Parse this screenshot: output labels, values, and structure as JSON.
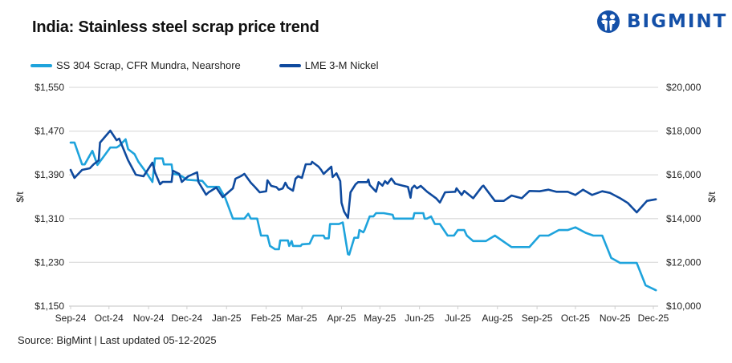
{
  "title": "India: Stainless steel scrap price trend",
  "logo_text": "BIGMINT",
  "source": "Source: BigMint | Last updated 05-12-2025",
  "colors": {
    "ss304": "#1ea3dc",
    "nickel": "#0f4a9e",
    "grid": "#dddddd",
    "logo": "#1450a8"
  },
  "chart_data": {
    "type": "line",
    "title": "India: Stainless steel scrap price trend",
    "grid": true,
    "legend_position": "top-left",
    "x_ticks": [
      "Sep-24",
      "Oct-24",
      "Nov-24",
      "Dec-24",
      "Jan-25",
      "Feb-25",
      "Mar-25",
      "Apr-25",
      "May-25",
      "Jun-25",
      "Jul-25",
      "Aug-25",
      "Sep-25",
      "Oct-25",
      "Nov-25",
      "Dec-25"
    ],
    "x_range": [
      "2024-09-01",
      "2025-12-01"
    ],
    "y_left": {
      "label": "$/t",
      "range": [
        1150,
        1550
      ],
      "ticks": [
        "$1,150",
        "$1,230",
        "$1,310",
        "$1,390",
        "$1,470",
        "$1,550"
      ]
    },
    "y_right": {
      "label": "$/t",
      "range": [
        10000,
        20000
      ],
      "ticks": [
        "$10,000",
        "$12,000",
        "$14,000",
        "$16,000",
        "$18,000",
        "$20,000"
      ]
    },
    "series": [
      {
        "name": "SS 304 Scrap, CFR Mundra, Nearshore",
        "axis": "left",
        "color": "#1ea3dc",
        "points": [
          [
            "2024-09-01",
            1449
          ],
          [
            "2024-09-04",
            1449
          ],
          [
            "2024-09-10",
            1409
          ],
          [
            "2024-09-12",
            1409
          ],
          [
            "2024-09-18",
            1434
          ],
          [
            "2024-09-22",
            1408
          ],
          [
            "2024-10-02",
            1440
          ],
          [
            "2024-10-07",
            1440
          ],
          [
            "2024-10-09",
            1443
          ],
          [
            "2024-10-14",
            1455
          ],
          [
            "2024-10-16",
            1437
          ],
          [
            "2024-10-21",
            1428
          ],
          [
            "2024-10-24",
            1414
          ],
          [
            "2024-10-30",
            1395
          ],
          [
            "2024-11-04",
            1377
          ],
          [
            "2024-11-06",
            1420
          ],
          [
            "2024-11-12",
            1420
          ],
          [
            "2024-11-13",
            1409
          ],
          [
            "2024-11-19",
            1409
          ],
          [
            "2024-11-20",
            1392
          ],
          [
            "2024-11-25",
            1390
          ],
          [
            "2024-11-28",
            1386
          ],
          [
            "2024-12-01",
            1381
          ],
          [
            "2024-12-13",
            1379
          ],
          [
            "2024-12-17",
            1368
          ],
          [
            "2024-12-26",
            1368
          ],
          [
            "2024-12-31",
            1348
          ],
          [
            "2025-01-06",
            1310
          ],
          [
            "2025-01-15",
            1310
          ],
          [
            "2025-01-18",
            1319
          ],
          [
            "2025-01-20",
            1310
          ],
          [
            "2025-01-25",
            1310
          ],
          [
            "2025-01-28",
            1279
          ],
          [
            "2025-02-02",
            1279
          ],
          [
            "2025-02-04",
            1260
          ],
          [
            "2025-02-08",
            1254
          ],
          [
            "2025-02-11",
            1254
          ],
          [
            "2025-02-12",
            1270
          ],
          [
            "2025-02-18",
            1270
          ],
          [
            "2025-02-19",
            1260
          ],
          [
            "2025-02-21",
            1269
          ],
          [
            "2025-02-22",
            1260
          ],
          [
            "2025-02-28",
            1260
          ],
          [
            "2025-03-01",
            1263
          ],
          [
            "2025-03-07",
            1264
          ],
          [
            "2025-03-10",
            1279
          ],
          [
            "2025-03-18",
            1279
          ],
          [
            "2025-03-19",
            1274
          ],
          [
            "2025-03-22",
            1274
          ],
          [
            "2025-03-23",
            1300
          ],
          [
            "2025-03-30",
            1300
          ],
          [
            "2025-04-02",
            1303
          ],
          [
            "2025-04-04",
            1274
          ],
          [
            "2025-04-06",
            1245
          ],
          [
            "2025-04-07",
            1244
          ],
          [
            "2025-04-11",
            1275
          ],
          [
            "2025-04-14",
            1275
          ],
          [
            "2025-04-15",
            1289
          ],
          [
            "2025-04-18",
            1285
          ],
          [
            "2025-04-19",
            1289
          ],
          [
            "2025-04-23",
            1314
          ],
          [
            "2025-04-26",
            1314
          ],
          [
            "2025-04-28",
            1320
          ],
          [
            "2025-05-04",
            1320
          ],
          [
            "2025-05-11",
            1317
          ],
          [
            "2025-05-12",
            1310
          ],
          [
            "2025-05-27",
            1310
          ],
          [
            "2025-05-28",
            1320
          ],
          [
            "2025-06-04",
            1320
          ],
          [
            "2025-06-05",
            1310
          ],
          [
            "2025-06-07",
            1310
          ],
          [
            "2025-06-10",
            1314
          ],
          [
            "2025-06-13",
            1300
          ],
          [
            "2025-06-17",
            1300
          ],
          [
            "2025-06-23",
            1279
          ],
          [
            "2025-06-28",
            1279
          ],
          [
            "2025-07-01",
            1289
          ],
          [
            "2025-07-06",
            1289
          ],
          [
            "2025-07-08",
            1279
          ],
          [
            "2025-07-13",
            1269
          ],
          [
            "2025-07-23",
            1269
          ],
          [
            "2025-07-30",
            1279
          ],
          [
            "2025-08-12",
            1258
          ],
          [
            "2025-08-26",
            1258
          ],
          [
            "2025-09-03",
            1279
          ],
          [
            "2025-09-10",
            1279
          ],
          [
            "2025-09-18",
            1289
          ],
          [
            "2025-09-25",
            1289
          ],
          [
            "2025-10-01",
            1294
          ],
          [
            "2025-10-09",
            1284
          ],
          [
            "2025-10-15",
            1279
          ],
          [
            "2025-10-22",
            1279
          ],
          [
            "2025-10-29",
            1238
          ],
          [
            "2025-11-05",
            1229
          ],
          [
            "2025-11-18",
            1229
          ],
          [
            "2025-11-25",
            1188
          ],
          [
            "2025-12-03",
            1179
          ]
        ]
      },
      {
        "name": "LME 3-M Nickel",
        "axis": "right",
        "color": "#0f4a9e",
        "points": [
          [
            "2024-09-01",
            16227
          ],
          [
            "2024-09-04",
            15861
          ],
          [
            "2024-09-10",
            16227
          ],
          [
            "2024-09-16",
            16300
          ],
          [
            "2024-09-19",
            16484
          ],
          [
            "2024-09-23",
            16667
          ],
          [
            "2024-09-24",
            17473
          ],
          [
            "2024-10-02",
            18022
          ],
          [
            "2024-10-07",
            17583
          ],
          [
            "2024-10-09",
            17656
          ],
          [
            "2024-10-16",
            16667
          ],
          [
            "2024-10-22",
            16007
          ],
          [
            "2024-10-28",
            15934
          ],
          [
            "2024-11-04",
            16557
          ],
          [
            "2024-11-06",
            16117
          ],
          [
            "2024-11-10",
            15568
          ],
          [
            "2024-11-12",
            15678
          ],
          [
            "2024-11-19",
            15678
          ],
          [
            "2024-11-20",
            16190
          ],
          [
            "2024-11-25",
            16044
          ],
          [
            "2024-11-27",
            15678
          ],
          [
            "2024-12-02",
            15934
          ],
          [
            "2024-12-09",
            16117
          ],
          [
            "2024-12-10",
            15678
          ],
          [
            "2024-12-16",
            15091
          ],
          [
            "2024-12-18",
            15201
          ],
          [
            "2024-12-24",
            15421
          ],
          [
            "2024-12-29",
            14981
          ],
          [
            "2025-01-06",
            15385
          ],
          [
            "2025-01-08",
            15824
          ],
          [
            "2025-01-12",
            15934
          ],
          [
            "2025-01-15",
            16044
          ],
          [
            "2025-01-20",
            15641
          ],
          [
            "2025-01-23",
            15458
          ],
          [
            "2025-01-27",
            15201
          ],
          [
            "2025-02-01",
            15250
          ],
          [
            "2025-02-02",
            15751
          ],
          [
            "2025-02-05",
            15495
          ],
          [
            "2025-02-09",
            15440
          ],
          [
            "2025-02-11",
            15320
          ],
          [
            "2025-02-14",
            15380
          ],
          [
            "2025-02-16",
            15640
          ],
          [
            "2025-02-18",
            15420
          ],
          [
            "2025-02-22",
            15275
          ],
          [
            "2025-02-24",
            15824
          ],
          [
            "2025-02-26",
            15934
          ],
          [
            "2025-03-01",
            15860
          ],
          [
            "2025-03-04",
            16484
          ],
          [
            "2025-03-08",
            16484
          ],
          [
            "2025-03-09",
            16594
          ],
          [
            "2025-03-14",
            16374
          ],
          [
            "2025-03-16",
            16227
          ],
          [
            "2025-03-18",
            16044
          ],
          [
            "2025-03-24",
            16374
          ],
          [
            "2025-03-25",
            15900
          ],
          [
            "2025-03-28",
            16070
          ],
          [
            "2025-03-31",
            15715
          ],
          [
            "2025-04-01",
            14725
          ],
          [
            "2025-04-03",
            14322
          ],
          [
            "2025-04-06",
            14030
          ],
          [
            "2025-04-08",
            15201
          ],
          [
            "2025-04-12",
            15568
          ],
          [
            "2025-04-14",
            15665
          ],
          [
            "2025-04-21",
            15665
          ],
          [
            "2025-04-22",
            15788
          ],
          [
            "2025-04-23",
            15543
          ],
          [
            "2025-04-28",
            15227
          ],
          [
            "2025-04-30",
            15665
          ],
          [
            "2025-05-03",
            15507
          ],
          [
            "2025-05-05",
            15714
          ],
          [
            "2025-05-07",
            15592
          ],
          [
            "2025-05-10",
            15836
          ],
          [
            "2025-05-13",
            15592
          ],
          [
            "2025-05-19",
            15507
          ],
          [
            "2025-05-23",
            15446
          ],
          [
            "2025-05-25",
            14956
          ],
          [
            "2025-05-26",
            15385
          ],
          [
            "2025-05-28",
            15507
          ],
          [
            "2025-05-30",
            15385
          ],
          [
            "2025-06-02",
            15495
          ],
          [
            "2025-06-07",
            15227
          ],
          [
            "2025-06-14",
            14932
          ],
          [
            "2025-06-17",
            14737
          ],
          [
            "2025-06-21",
            15201
          ],
          [
            "2025-06-29",
            15227
          ],
          [
            "2025-06-30",
            15385
          ],
          [
            "2025-07-04",
            15080
          ],
          [
            "2025-07-06",
            15263
          ],
          [
            "2025-07-13",
            14932
          ],
          [
            "2025-07-20",
            15470
          ],
          [
            "2025-07-21",
            15507
          ],
          [
            "2025-07-30",
            14810
          ],
          [
            "2025-08-06",
            14810
          ],
          [
            "2025-08-12",
            15055
          ],
          [
            "2025-08-20",
            14932
          ],
          [
            "2025-08-26",
            15263
          ],
          [
            "2025-09-03",
            15250
          ],
          [
            "2025-09-10",
            15323
          ],
          [
            "2025-09-16",
            15227
          ],
          [
            "2025-09-25",
            15227
          ],
          [
            "2025-10-01",
            15080
          ],
          [
            "2025-10-07",
            15323
          ],
          [
            "2025-10-14",
            15080
          ],
          [
            "2025-10-22",
            15250
          ],
          [
            "2025-10-28",
            15176
          ],
          [
            "2025-11-05",
            14932
          ],
          [
            "2025-11-11",
            14713
          ],
          [
            "2025-11-18",
            14286
          ],
          [
            "2025-11-26",
            14810
          ],
          [
            "2025-12-03",
            14884
          ]
        ]
      }
    ]
  }
}
